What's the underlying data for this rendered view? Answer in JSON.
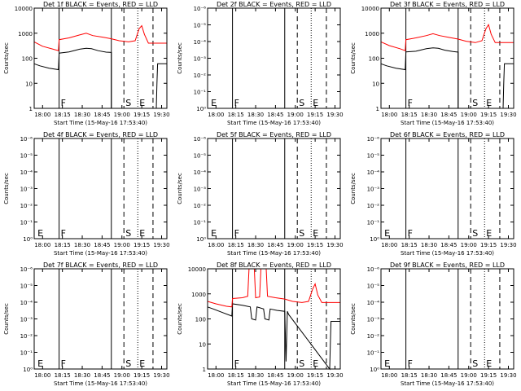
{
  "figure": {
    "xlabel": "Start Time (15-May-16 17:53:40)",
    "ylabel": "Counts/sec",
    "event_letters": {
      "F": "F",
      "S": "S",
      "E": "E"
    },
    "colors": {
      "events": "#000000",
      "lld": "#ff0000",
      "axes": "#000000",
      "background": "#ffffff"
    }
  },
  "chart_data": [
    {
      "type": "line",
      "detector": "1f",
      "title": "Det 1f BLACK = Events, RED = LLD",
      "y_scale": "log",
      "ylim": [
        1,
        10000
      ],
      "ytick_labels": [
        "1",
        "10",
        "100",
        "1000",
        "10000"
      ],
      "xtick_labels": [
        "18:00",
        "18:15",
        "18:30",
        "18:45",
        "19:00",
        "19:15",
        "19:30"
      ],
      "xlim": [
        "17:53:40",
        "19:34:00"
      ],
      "solid_lines": [
        "18:12:30",
        "18:52:00"
      ],
      "dashed_lines": [
        "19:01:30",
        "19:23:30"
      ],
      "dotted_lines": [
        "19:12:00"
      ],
      "markers": [
        {
          "letter": "F",
          "time": "18:12:30"
        },
        {
          "letter": "S",
          "time": "19:01:30"
        },
        {
          "letter": "E",
          "time": "19:12:00"
        }
      ],
      "series": [
        {
          "name": "Events",
          "color": "#000000",
          "x": [
            "17:53:40",
            "17:58:00",
            "18:05:00",
            "18:12:00",
            "18:12:30",
            "18:20:00",
            "18:28:00",
            "18:33:00",
            "18:37:00",
            "18:42:00",
            "18:48:00",
            "18:52:00",
            "18:52:01",
            "19:26:00",
            "19:26:30",
            "19:27:00",
            "19:34:00"
          ],
          "y": [
            60,
            50,
            40,
            35,
            160,
            180,
            230,
            250,
            240,
            200,
            175,
            170,
            1,
            1,
            10,
            60,
            60
          ]
        },
        {
          "name": "LLD",
          "color": "#ff0000",
          "x": [
            "17:53:40",
            "18:00:00",
            "18:08:00",
            "18:12:00",
            "18:12:30",
            "18:20:00",
            "18:28:00",
            "18:33:00",
            "18:38:00",
            "18:45:00",
            "18:52:00",
            "18:58:00",
            "19:05:00",
            "19:10:00",
            "19:13:00",
            "19:15:00",
            "19:17:00",
            "19:20:00",
            "19:34:00"
          ],
          "y": [
            450,
            300,
            230,
            200,
            550,
            650,
            850,
            1000,
            800,
            700,
            600,
            500,
            450,
            500,
            1500,
            2000,
            900,
            400,
            400
          ]
        }
      ]
    },
    {
      "type": "line",
      "detector": "2f",
      "title": "Det 2f BLACK = Events, RED = LLD",
      "y_scale": "log",
      "ylim": [
        1,
        1e-06
      ],
      "ytick_labels": [
        "10⁰",
        "10⁻¹",
        "10⁻²",
        "10⁻³",
        "10⁻⁴",
        "10⁻⁵",
        "10⁻⁶"
      ],
      "xtick_labels": [
        "18:00",
        "18:15",
        "18:30",
        "18:45",
        "19:00",
        "19:15",
        "19:30"
      ],
      "xlim": [
        "17:53:40",
        "19:34:00"
      ],
      "solid_lines": [
        "18:12:30",
        "18:52:00"
      ],
      "dashed_lines": [
        "19:01:30",
        "19:23:30"
      ],
      "dotted_lines": [
        "19:12:00"
      ],
      "markers": [
        {
          "letter": "E",
          "time": "17:55:00"
        },
        {
          "letter": "F",
          "time": "18:12:30"
        },
        {
          "letter": "S",
          "time": "19:01:30"
        },
        {
          "letter": "E",
          "time": "19:12:00"
        }
      ],
      "series": []
    },
    {
      "type": "line",
      "detector": "3f",
      "title": "Det 3f BLACK = Events, RED = LLD",
      "y_scale": "log",
      "ylim": [
        1,
        10000
      ],
      "ytick_labels": [
        "1",
        "10",
        "100",
        "1000",
        "10000"
      ],
      "xtick_labels": [
        "18:00",
        "18:15",
        "18:30",
        "18:45",
        "19:00",
        "19:15",
        "19:30"
      ],
      "xlim": [
        "17:53:40",
        "19:34:00"
      ],
      "solid_lines": [
        "18:12:30",
        "18:52:00"
      ],
      "dashed_lines": [
        "19:01:30",
        "19:23:30"
      ],
      "dotted_lines": [
        "19:12:00"
      ],
      "markers": [
        {
          "letter": "F",
          "time": "18:12:30"
        },
        {
          "letter": "S",
          "time": "19:01:30"
        },
        {
          "letter": "E",
          "time": "19:12:00"
        }
      ],
      "series": [
        {
          "name": "Events",
          "color": "#000000",
          "x": [
            "17:53:40",
            "17:58:00",
            "18:05:00",
            "18:12:00",
            "18:12:30",
            "18:20:00",
            "18:28:00",
            "18:33:00",
            "18:37:00",
            "18:42:00",
            "18:48:00",
            "18:52:00",
            "18:52:01",
            "19:26:00",
            "19:26:30",
            "19:27:00",
            "19:34:00"
          ],
          "y": [
            60,
            50,
            40,
            35,
            180,
            190,
            240,
            260,
            250,
            210,
            185,
            175,
            1,
            1,
            10,
            60,
            60
          ]
        },
        {
          "name": "LLD",
          "color": "#ff0000",
          "x": [
            "17:53:40",
            "18:00:00",
            "18:08:00",
            "18:12:00",
            "18:12:30",
            "18:20:00",
            "18:28:00",
            "18:33:00",
            "18:38:00",
            "18:45:00",
            "18:52:00",
            "18:58:00",
            "19:05:00",
            "19:10:00",
            "19:13:00",
            "19:15:00",
            "19:17:00",
            "19:20:00",
            "19:34:00"
          ],
          "y": [
            450,
            320,
            240,
            200,
            550,
            650,
            800,
            950,
            800,
            680,
            580,
            480,
            420,
            500,
            1500,
            2200,
            900,
            420,
            420
          ]
        }
      ]
    },
    {
      "type": "line",
      "detector": "4f",
      "title": "Det 4f BLACK = Events, RED = LLD",
      "y_scale": "log",
      "ylim": [
        1,
        1e-06
      ],
      "ytick_labels": [
        "10⁰",
        "10⁻¹",
        "10⁻²",
        "10⁻³",
        "10⁻⁴",
        "10⁻⁵",
        "10⁻⁶"
      ],
      "xtick_labels": [
        "18:00",
        "18:15",
        "18:30",
        "18:45",
        "19:00",
        "19:15",
        "19:30"
      ],
      "xlim": [
        "17:53:40",
        "19:34:00"
      ],
      "solid_lines": [
        "18:12:30",
        "18:52:00"
      ],
      "dashed_lines": [
        "19:01:30",
        "19:23:30"
      ],
      "dotted_lines": [
        "19:12:00"
      ],
      "markers": [
        {
          "letter": "E",
          "time": "17:55:00"
        },
        {
          "letter": "F",
          "time": "18:12:30"
        },
        {
          "letter": "S",
          "time": "19:01:30"
        },
        {
          "letter": "E",
          "time": "19:12:00"
        }
      ],
      "series": []
    },
    {
      "type": "line",
      "detector": "5f",
      "title": "Det 5f BLACK = Events, RED = LLD",
      "y_scale": "log",
      "ylim": [
        1,
        1e-06
      ],
      "ytick_labels": [
        "10⁰",
        "10⁻¹",
        "10⁻²",
        "10⁻³",
        "10⁻⁴",
        "10⁻⁵",
        "10⁻⁶"
      ],
      "xtick_labels": [
        "18:00",
        "18:15",
        "18:30",
        "18:45",
        "19:00",
        "19:15",
        "19:30"
      ],
      "xlim": [
        "17:53:40",
        "19:34:00"
      ],
      "solid_lines": [
        "18:12:30",
        "18:52:00"
      ],
      "dashed_lines": [
        "19:01:30",
        "19:23:30"
      ],
      "dotted_lines": [
        "19:12:00"
      ],
      "markers": [
        {
          "letter": "E",
          "time": "17:55:00"
        },
        {
          "letter": "F",
          "time": "18:12:30"
        },
        {
          "letter": "S",
          "time": "19:01:30"
        },
        {
          "letter": "E",
          "time": "19:12:00"
        }
      ],
      "series": []
    },
    {
      "type": "line",
      "detector": "6f",
      "title": "Det 6f BLACK = Events, RED = LLD",
      "y_scale": "log",
      "ylim": [
        1,
        1e-06
      ],
      "ytick_labels": [
        "10⁰",
        "10⁻¹",
        "10⁻²",
        "10⁻³",
        "10⁻⁴",
        "10⁻⁵",
        "10⁻⁶"
      ],
      "xtick_labels": [
        "18:00",
        "18:15",
        "18:30",
        "18:45",
        "19:00",
        "19:15",
        "19:30"
      ],
      "xlim": [
        "17:53:40",
        "19:34:00"
      ],
      "solid_lines": [
        "18:12:30",
        "18:52:00"
      ],
      "dashed_lines": [
        "19:01:30",
        "19:23:30"
      ],
      "dotted_lines": [
        "19:12:00"
      ],
      "markers": [
        {
          "letter": "E",
          "time": "17:55:00"
        },
        {
          "letter": "F",
          "time": "18:12:30"
        },
        {
          "letter": "S",
          "time": "19:01:30"
        },
        {
          "letter": "E",
          "time": "19:12:00"
        }
      ],
      "series": []
    },
    {
      "type": "line",
      "detector": "7f",
      "title": "Det 7f BLACK = Events, RED = LLD",
      "y_scale": "log",
      "ylim": [
        1,
        1e-06
      ],
      "ytick_labels": [
        "10⁰",
        "10⁻¹",
        "10⁻²",
        "10⁻³",
        "10⁻⁴",
        "10⁻⁵",
        "10⁻⁶"
      ],
      "xtick_labels": [
        "18:00",
        "18:15",
        "18:30",
        "18:45",
        "19:00",
        "19:15",
        "19:30"
      ],
      "xlim": [
        "17:53:40",
        "19:34:00"
      ],
      "solid_lines": [
        "18:12:30",
        "18:52:00"
      ],
      "dashed_lines": [
        "19:01:30",
        "19:23:30"
      ],
      "dotted_lines": [
        "19:12:00"
      ],
      "markers": [
        {
          "letter": "E",
          "time": "17:55:00"
        },
        {
          "letter": "F",
          "time": "18:12:30"
        },
        {
          "letter": "S",
          "time": "19:01:30"
        },
        {
          "letter": "E",
          "time": "19:12:00"
        }
      ],
      "series": []
    },
    {
      "type": "line",
      "detector": "8f",
      "title": "Det 8f BLACK = Events, RED = LLD",
      "y_scale": "log",
      "ylim": [
        1,
        10000
      ],
      "ytick_labels": [
        "1",
        "10",
        "100",
        "1000",
        "10000"
      ],
      "xtick_labels": [
        "18:00",
        "18:15",
        "18:30",
        "18:45",
        "19:00",
        "19:15",
        "19:30"
      ],
      "xlim": [
        "17:53:40",
        "19:34:00"
      ],
      "solid_lines": [
        "18:12:30",
        "18:52:00"
      ],
      "dashed_lines": [
        "19:01:30",
        "19:23:30"
      ],
      "dotted_lines": [
        "19:12:00"
      ],
      "markers": [
        {
          "letter": "F",
          "time": "18:12:30"
        },
        {
          "letter": "S",
          "time": "19:01:30"
        },
        {
          "letter": "E",
          "time": "19:12:00"
        }
      ],
      "series": [
        {
          "name": "Events",
          "color": "#000000",
          "x": [
            "17:53:40",
            "17:58:00",
            "18:05:00",
            "18:12:00",
            "18:12:30",
            "18:20:00",
            "18:26:00",
            "18:27:00",
            "18:30:00",
            "18:31:00",
            "18:36:00",
            "18:37:00",
            "18:40:00",
            "18:41:00",
            "18:46:00",
            "18:52:00",
            "18:53:00",
            "18:54:00",
            "18:55:00",
            "19:26:00",
            "19:26:30",
            "19:27:00",
            "19:34:00"
          ],
          "y": [
            300,
            250,
            180,
            130,
            400,
            350,
            300,
            100,
            90,
            300,
            250,
            100,
            90,
            250,
            220,
            200,
            2,
            200,
            150,
            1,
            10,
            80,
            80
          ]
        },
        {
          "name": "LLD",
          "color": "#ff0000",
          "x": [
            "17:53:40",
            "18:00:00",
            "18:08:00",
            "18:12:00",
            "18:12:30",
            "18:20:00",
            "18:24:00",
            "18:25:00",
            "18:29:00",
            "18:30:00",
            "18:33:00",
            "18:34:00",
            "18:38:00",
            "18:39:00",
            "18:45:00",
            "18:52:00",
            "18:58:00",
            "19:05:00",
            "19:10:00",
            "19:13:00",
            "19:15:00",
            "19:17:00",
            "19:20:00",
            "19:34:00"
          ],
          "y": [
            500,
            400,
            320,
            300,
            650,
            700,
            800,
            10000,
            10000,
            700,
            750,
            10000,
            10000,
            800,
            700,
            620,
            500,
            450,
            500,
            1500,
            2500,
            900,
            450,
            450
          ]
        }
      ]
    },
    {
      "type": "line",
      "detector": "9f",
      "title": "Det 9f BLACK = Events, RED = LLD",
      "y_scale": "log",
      "ylim": [
        1,
        1e-06
      ],
      "ytick_labels": [
        "10⁰",
        "10⁻¹",
        "10⁻²",
        "10⁻³",
        "10⁻⁴",
        "10⁻⁵",
        "10⁻⁶"
      ],
      "xtick_labels": [
        "18:00",
        "18:15",
        "18:30",
        "18:45",
        "19:00",
        "19:15",
        "19:30"
      ],
      "xlim": [
        "17:53:40",
        "19:34:00"
      ],
      "solid_lines": [
        "18:12:30",
        "18:52:00"
      ],
      "dashed_lines": [
        "19:01:30",
        "19:23:30"
      ],
      "dotted_lines": [
        "19:12:00"
      ],
      "markers": [
        {
          "letter": "E",
          "time": "17:55:00"
        },
        {
          "letter": "F",
          "time": "18:12:30"
        },
        {
          "letter": "S",
          "time": "19:01:30"
        },
        {
          "letter": "E",
          "time": "19:12:00"
        }
      ],
      "series": []
    }
  ]
}
